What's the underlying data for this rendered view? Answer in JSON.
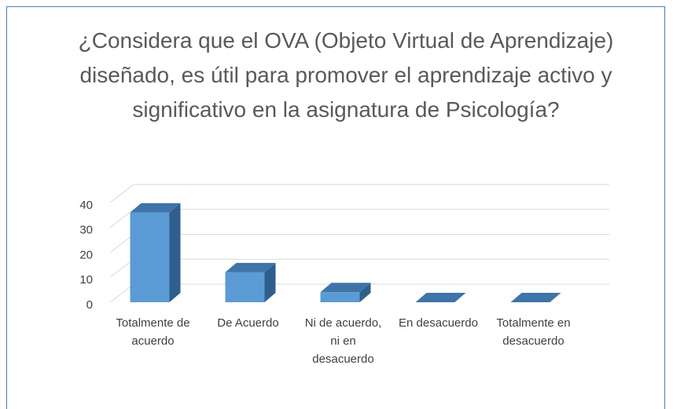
{
  "chart_data": {
    "type": "bar3d",
    "title": "¿Considera que el OVA (Objeto Virtual de Aprendizaje) diseñado, es útil para promover el aprendizaje activo y significativo en la asignatura de Psicología?",
    "categories": [
      "Totalmente de acuerdo",
      "De Acuerdo",
      "Ni de acuerdo, ni en desacuerdo",
      "En desacuerdo",
      "Totalmente en desacuerdo"
    ],
    "values": [
      36,
      12,
      4,
      0,
      0
    ],
    "color": "#5b9bd5",
    "ylim": [
      0,
      40
    ],
    "yticks": [
      0,
      10,
      20,
      30,
      40
    ],
    "grid": true
  }
}
